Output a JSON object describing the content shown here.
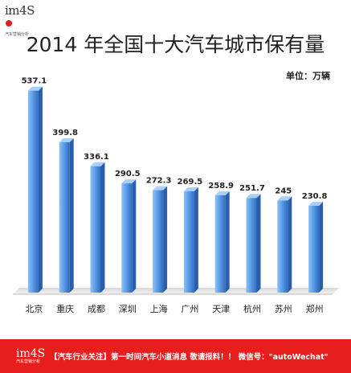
{
  "logo": {
    "brand": "im4S",
    "tagline": "汽车营销分析"
  },
  "chart_data": {
    "type": "bar",
    "title": "2014 年全国十大汽车城市保有量",
    "unit": "单位：万辆",
    "categories": [
      "北京",
      "重庆",
      "成都",
      "深圳",
      "上海",
      "广州",
      "天津",
      "杭州",
      "苏州",
      "郑州"
    ],
    "values": [
      537.1,
      399.8,
      336.1,
      290.5,
      272.3,
      269.5,
      258.9,
      251.7,
      245,
      230.8
    ],
    "value_labels": [
      "537.1",
      "399.8",
      "336.1",
      "290.5",
      "272.3",
      "269.5",
      "258.9",
      "251.7",
      "245",
      "230.8"
    ],
    "ylim": [
      0,
      560
    ],
    "grid": false,
    "bar_color": "#5b9de8"
  },
  "footer": {
    "brand": "im4S",
    "tagline": "汽车营销分析",
    "text": "【汽车行业关注】第一时间汽车小道消息   敬请报料！！  微信号：\"autoWechat\"",
    "bg_color": "#e81e1e"
  }
}
